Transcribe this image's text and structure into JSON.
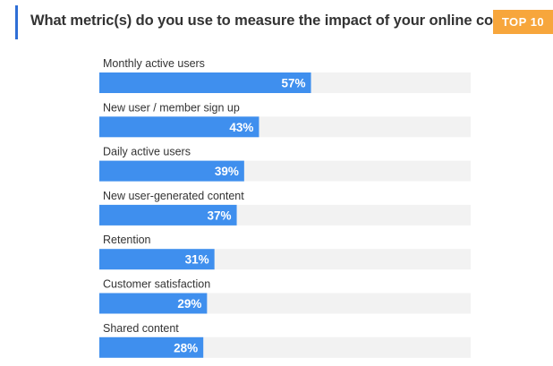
{
  "chart_data": {
    "type": "bar",
    "orientation": "horizontal",
    "title": "What metric(s) do you use to measure the impact of your online community?",
    "badge": "TOP 10",
    "categories": [
      "Monthly active users",
      "New user / member sign up",
      "Daily active users",
      "New user-generated content",
      "Retention",
      "Customer satisfaction",
      "Shared content"
    ],
    "values": [
      57,
      43,
      39,
      37,
      31,
      29,
      28
    ],
    "value_labels": [
      "57%",
      "43%",
      "39%",
      "37%",
      "31%",
      "29%",
      "28%"
    ],
    "xlim": [
      0,
      100
    ],
    "unit": "%",
    "grid": false,
    "bar_color": "#3f8fee",
    "track_color": "#f2f2f2",
    "title_accent_color": "#2f6fd6",
    "badge_color": "#f7a63c"
  }
}
